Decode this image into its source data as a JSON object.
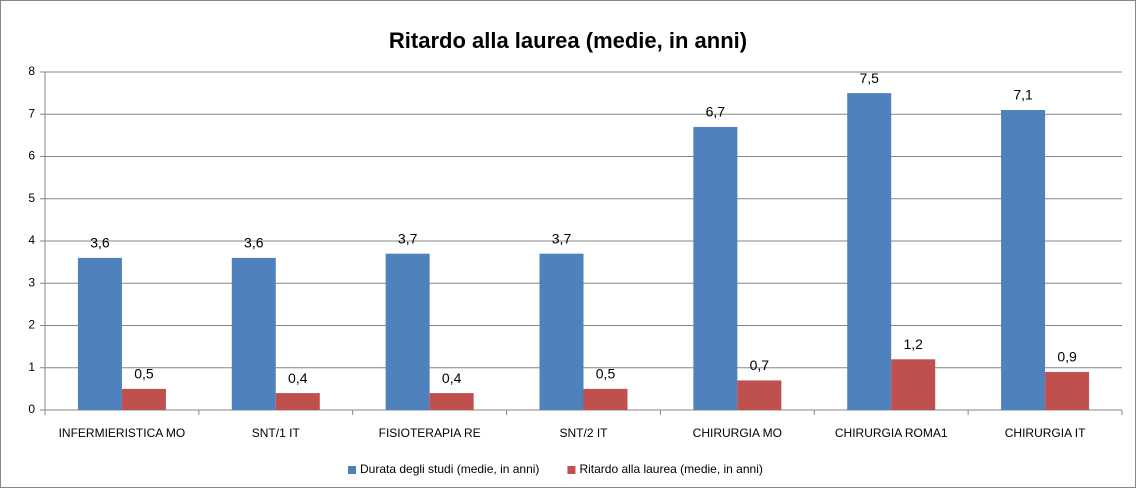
{
  "chart_data": {
    "type": "bar",
    "title": "Ritardo alla laurea (medie, in anni)",
    "categories": [
      "INFERMIERISTICA MO",
      "SNT/1 IT",
      "FISIOTERAPIA RE",
      "SNT/2 IT",
      "CHIRURGIA MO",
      "CHIRURGIA ROMA1",
      "CHIRURGIA IT"
    ],
    "series": [
      {
        "name": "Durata degli studi (medie, in anni)",
        "color": "#4f81bd",
        "values": [
          3.6,
          3.6,
          3.7,
          3.7,
          6.7,
          7.5,
          7.1
        ],
        "value_labels": [
          "3,6",
          "3,6",
          "3,7",
          "3,7",
          "6,7",
          "7,5",
          "7,1"
        ]
      },
      {
        "name": "Ritardo alla laurea (medie, in anni)",
        "color": "#c0504d",
        "values": [
          0.5,
          0.4,
          0.4,
          0.5,
          0.7,
          1.2,
          0.9
        ],
        "value_labels": [
          "0,5",
          "0,4",
          "0,4",
          "0,5",
          "0,7",
          "1,2",
          "0,9"
        ]
      }
    ],
    "ylim": [
      0,
      8
    ],
    "yticks": [
      0,
      1,
      2,
      3,
      4,
      5,
      6,
      7,
      8
    ],
    "grid": true,
    "legend": "bottom"
  }
}
